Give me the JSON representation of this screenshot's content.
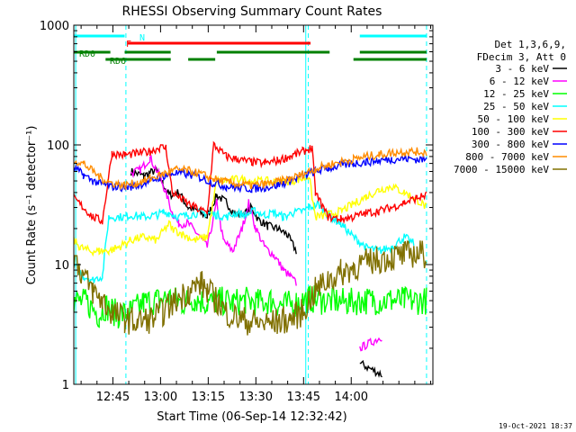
{
  "chart_data": {
    "type": "line",
    "title": "RHESSI Observing Summary Count Rates",
    "xlabel": "Start Time (06-Sep-14 12:32:42)",
    "ylabel": "Count Rate (s⁻¹ detector⁻¹)",
    "yscale": "log",
    "ylim": [
      1,
      1000
    ],
    "xlim_minutes": [
      0,
      113
    ],
    "x_ticks": [
      {
        "label": "12:45",
        "minute": 12.3
      },
      {
        "label": "13:00",
        "minute": 27.3
      },
      {
        "label": "13:15",
        "minute": 42.3
      },
      {
        "label": "13:30",
        "minute": 57.3
      },
      {
        "label": "13:45",
        "minute": 72.3
      },
      {
        "label": "14:00",
        "minute": 87.3
      }
    ],
    "y_ticks": [
      "1",
      "10",
      "100",
      "1000"
    ],
    "legend_header": [
      "Det 1,3,6,9,",
      "FDecim 3, Att 0"
    ],
    "legend_position": "right",
    "series": [
      {
        "name": "3 - 6 keV",
        "color": "#000000",
        "points": [
          [
            0,
            null
          ],
          [
            16,
            null
          ],
          [
            18,
            60
          ],
          [
            22,
            55
          ],
          [
            26,
            62
          ],
          [
            28,
            48
          ],
          [
            30,
            38
          ],
          [
            33,
            40
          ],
          [
            36,
            30
          ],
          [
            39,
            28
          ],
          [
            42,
            25
          ],
          [
            45,
            38
          ],
          [
            48,
            33
          ],
          [
            51,
            26
          ],
          [
            54,
            27
          ],
          [
            56,
            30
          ],
          [
            58,
            24
          ],
          [
            61,
            21
          ],
          [
            64,
            20
          ],
          [
            67,
            18
          ],
          [
            70,
            13
          ],
          [
            73,
            null
          ],
          [
            90,
            1.5
          ],
          [
            97,
            1.2
          ],
          [
            101,
            null
          ]
        ]
      },
      {
        "name": "6 - 12 keV",
        "color": "#ff00ff",
        "points": [
          [
            0,
            null
          ],
          [
            16,
            null
          ],
          [
            18,
            58
          ],
          [
            21,
            62
          ],
          [
            24,
            78
          ],
          [
            27,
            55
          ],
          [
            29,
            40
          ],
          [
            31,
            27
          ],
          [
            33,
            22
          ],
          [
            36,
            22
          ],
          [
            39,
            18
          ],
          [
            42,
            14
          ],
          [
            45,
            33
          ],
          [
            47,
            16
          ],
          [
            50,
            13
          ],
          [
            53,
            20
          ],
          [
            55,
            33
          ],
          [
            57,
            21
          ],
          [
            60,
            14
          ],
          [
            63,
            12
          ],
          [
            66,
            9
          ],
          [
            68,
            8
          ],
          [
            70,
            7
          ],
          [
            73,
            null
          ],
          [
            90,
            2
          ],
          [
            97,
            2.5
          ],
          [
            101,
            null
          ]
        ]
      },
      {
        "name": "12 - 25 keV",
        "color": "#00ff00",
        "points": [
          [
            0,
            5
          ],
          [
            4,
            4.8
          ],
          [
            8,
            3.8
          ],
          [
            10,
            4.5
          ],
          [
            14,
            3.8
          ],
          [
            18,
            4
          ],
          [
            22,
            4.8
          ],
          [
            26,
            5
          ],
          [
            30,
            5.3
          ],
          [
            34,
            4.8
          ],
          [
            38,
            5.2
          ],
          [
            42,
            4.8
          ],
          [
            46,
            5
          ],
          [
            50,
            4.8
          ],
          [
            54,
            5
          ],
          [
            58,
            4.8
          ],
          [
            62,
            5
          ],
          [
            66,
            4.5
          ],
          [
            70,
            4.8
          ],
          [
            74,
            5.2
          ],
          [
            78,
            5
          ],
          [
            82,
            5
          ],
          [
            86,
            4.8
          ],
          [
            90,
            5
          ],
          [
            94,
            5
          ],
          [
            100,
            5
          ],
          [
            104,
            5
          ],
          [
            108,
            5
          ],
          [
            111,
            5
          ]
        ]
      },
      {
        "name": "25 - 50 keV",
        "color": "#00ffff",
        "points": [
          [
            0,
            10
          ],
          [
            3,
            8
          ],
          [
            6,
            7.5
          ],
          [
            9,
            8
          ],
          [
            11,
            25
          ],
          [
            16,
            25
          ],
          [
            18,
            26
          ],
          [
            22,
            25
          ],
          [
            26,
            26
          ],
          [
            28,
            27
          ],
          [
            30,
            27
          ],
          [
            33,
            25
          ],
          [
            36,
            26
          ],
          [
            39,
            27
          ],
          [
            42,
            27
          ],
          [
            45,
            26
          ],
          [
            48,
            25
          ],
          [
            51,
            27
          ],
          [
            54,
            26
          ],
          [
            57,
            28
          ],
          [
            60,
            26
          ],
          [
            63,
            27
          ],
          [
            66,
            25
          ],
          [
            69,
            27
          ],
          [
            72,
            28
          ],
          [
            74,
            30
          ],
          [
            77,
            32
          ],
          [
            80,
            26
          ],
          [
            84,
            22
          ],
          [
            88,
            17
          ],
          [
            92,
            14
          ],
          [
            96,
            13
          ],
          [
            100,
            14
          ],
          [
            104,
            17
          ],
          [
            107,
            15
          ],
          [
            111,
            null
          ]
        ]
      },
      {
        "name": "50 - 100 keV",
        "color": "#ffff00",
        "points": [
          [
            0,
            16
          ],
          [
            2,
            14
          ],
          [
            5,
            13
          ],
          [
            8,
            13
          ],
          [
            11,
            13
          ],
          [
            14,
            14
          ],
          [
            18,
            16
          ],
          [
            22,
            17
          ],
          [
            26,
            16
          ],
          [
            30,
            22
          ],
          [
            31,
            20
          ],
          [
            34,
            18
          ],
          [
            38,
            16
          ],
          [
            42,
            17
          ],
          [
            45,
            50
          ],
          [
            48,
            50
          ],
          [
            52,
            52
          ],
          [
            56,
            50
          ],
          [
            60,
            50
          ],
          [
            64,
            49
          ],
          [
            68,
            50
          ],
          [
            72,
            52
          ],
          [
            74,
            55
          ],
          [
            76,
            25
          ],
          [
            80,
            26
          ],
          [
            84,
            28
          ],
          [
            88,
            32
          ],
          [
            92,
            37
          ],
          [
            96,
            42
          ],
          [
            100,
            45
          ],
          [
            104,
            40
          ],
          [
            108,
            35
          ],
          [
            111,
            30
          ]
        ]
      },
      {
        "name": "100 - 300 keV",
        "color": "#ff0000",
        "points": [
          [
            0,
            36
          ],
          [
            3,
            30
          ],
          [
            6,
            25
          ],
          [
            9,
            23
          ],
          [
            12,
            85
          ],
          [
            16,
            82
          ],
          [
            20,
            85
          ],
          [
            24,
            88
          ],
          [
            27,
            95
          ],
          [
            29,
            95
          ],
          [
            31,
            40
          ],
          [
            34,
            35
          ],
          [
            38,
            30
          ],
          [
            42,
            27
          ],
          [
            44,
            100
          ],
          [
            48,
            80
          ],
          [
            52,
            75
          ],
          [
            56,
            72
          ],
          [
            60,
            70
          ],
          [
            64,
            74
          ],
          [
            68,
            80
          ],
          [
            72,
            88
          ],
          [
            75,
            95
          ],
          [
            76,
            40
          ],
          [
            80,
            25
          ],
          [
            84,
            24
          ],
          [
            88,
            25
          ],
          [
            92,
            27
          ],
          [
            96,
            28
          ],
          [
            100,
            30
          ],
          [
            104,
            33
          ],
          [
            108,
            36
          ],
          [
            111,
            38
          ]
        ]
      },
      {
        "name": "300 - 800 keV",
        "color": "#0000ff",
        "points": [
          [
            0,
            65
          ],
          [
            3,
            56
          ],
          [
            6,
            50
          ],
          [
            9,
            47
          ],
          [
            12,
            45
          ],
          [
            16,
            44
          ],
          [
            20,
            46
          ],
          [
            24,
            50
          ],
          [
            28,
            55
          ],
          [
            32,
            58
          ],
          [
            36,
            57
          ],
          [
            40,
            53
          ],
          [
            44,
            48
          ],
          [
            48,
            45
          ],
          [
            52,
            44
          ],
          [
            56,
            43
          ],
          [
            60,
            44
          ],
          [
            64,
            46
          ],
          [
            68,
            50
          ],
          [
            72,
            55
          ],
          [
            76,
            60
          ],
          [
            80,
            64
          ],
          [
            84,
            67
          ],
          [
            88,
            70
          ],
          [
            92,
            72
          ],
          [
            96,
            74
          ],
          [
            100,
            76
          ],
          [
            104,
            77
          ],
          [
            108,
            76
          ],
          [
            111,
            75
          ]
        ]
      },
      {
        "name": "800 - 7000 keV",
        "color": "#ff8c00",
        "points": [
          [
            0,
            75
          ],
          [
            3,
            70
          ],
          [
            6,
            60
          ],
          [
            9,
            52
          ],
          [
            12,
            48
          ],
          [
            16,
            46
          ],
          [
            20,
            48
          ],
          [
            24,
            52
          ],
          [
            28,
            57
          ],
          [
            32,
            62
          ],
          [
            36,
            61
          ],
          [
            40,
            57
          ],
          [
            44,
            52
          ],
          [
            48,
            49
          ],
          [
            52,
            47
          ],
          [
            56,
            46
          ],
          [
            60,
            47
          ],
          [
            64,
            49
          ],
          [
            68,
            52
          ],
          [
            72,
            57
          ],
          [
            76,
            63
          ],
          [
            80,
            68
          ],
          [
            84,
            72
          ],
          [
            88,
            76
          ],
          [
            92,
            80
          ],
          [
            96,
            83
          ],
          [
            100,
            86
          ],
          [
            104,
            88
          ],
          [
            108,
            88
          ],
          [
            111,
            86
          ]
        ]
      },
      {
        "name": "7000 - 15000 keV",
        "color": "#807000",
        "points": [
          [
            0,
            12
          ],
          [
            3,
            8
          ],
          [
            6,
            6
          ],
          [
            9,
            5
          ],
          [
            12,
            4
          ],
          [
            16,
            3.5
          ],
          [
            20,
            3.3
          ],
          [
            24,
            3.5
          ],
          [
            28,
            4
          ],
          [
            32,
            5
          ],
          [
            36,
            6
          ],
          [
            40,
            7
          ],
          [
            42,
            6
          ],
          [
            45,
            5
          ],
          [
            48,
            4
          ],
          [
            52,
            3.5
          ],
          [
            56,
            3.3
          ],
          [
            60,
            3.2
          ],
          [
            64,
            3.3
          ],
          [
            68,
            3.5
          ],
          [
            72,
            4
          ],
          [
            74,
            5
          ],
          [
            76,
            6
          ],
          [
            80,
            7.5
          ],
          [
            84,
            8.5
          ],
          [
            88,
            9.5
          ],
          [
            92,
            10.5
          ],
          [
            96,
            11
          ],
          [
            100,
            11.5
          ],
          [
            104,
            12
          ],
          [
            108,
            12.5
          ],
          [
            111,
            12
          ]
        ]
      }
    ],
    "flags": [
      {
        "name": "N",
        "color": "#00ffff",
        "segments": [
          [
            0,
            16
          ],
          [
            90,
            111
          ]
        ]
      },
      {
        "name": "F",
        "color": "#ff0000",
        "segments": [
          [
            17,
            74.5
          ]
        ]
      },
      {
        "name": "RD0",
        "color": "#008000",
        "segments": [
          [
            0,
            11.5
          ],
          [
            16,
            30.5
          ],
          [
            45,
            80.5
          ],
          [
            90,
            111
          ]
        ]
      },
      {
        "name": "RD6",
        "color": "#008000",
        "segments": [
          [
            10,
            30.5
          ],
          [
            36,
            44.5
          ],
          [
            88,
            111
          ]
        ]
      }
    ],
    "grid": false,
    "footer_date": "19-Oct-2021 18:37"
  }
}
